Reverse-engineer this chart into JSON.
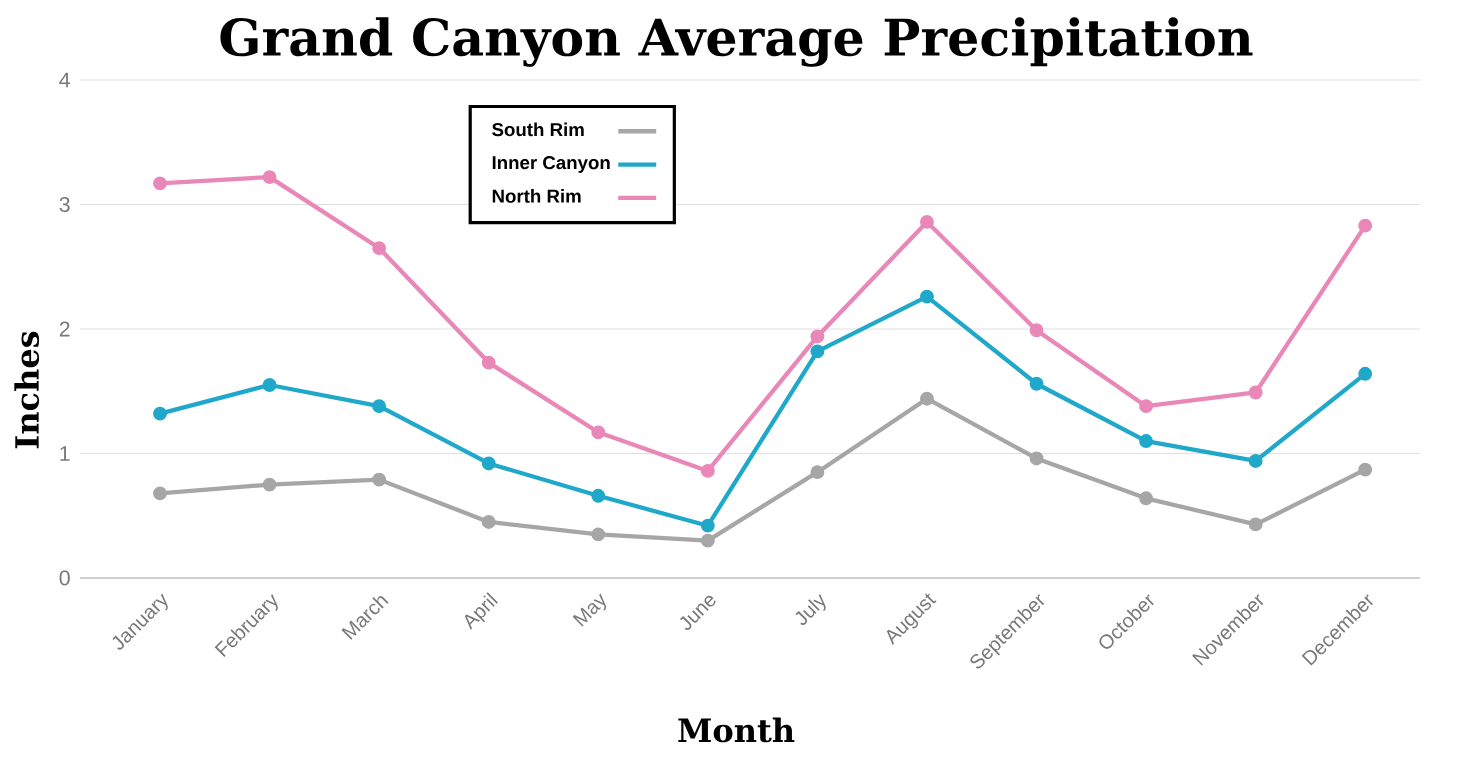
{
  "chart_data": {
    "type": "line",
    "title": "Grand Canyon Average Precipitation",
    "xlabel": "Month",
    "ylabel": "Inches",
    "categories": [
      "January",
      "February",
      "March",
      "April",
      "May",
      "June",
      "July",
      "August",
      "September",
      "October",
      "November",
      "December"
    ],
    "series": [
      {
        "name": "South Rim",
        "color": "#a6a6a6",
        "values": [
          0.68,
          0.75,
          0.79,
          0.45,
          0.35,
          0.3,
          0.85,
          1.44,
          0.96,
          0.64,
          0.43,
          0.87
        ]
      },
      {
        "name": "Inner Canyon",
        "color": "#1fa8c9",
        "values": [
          1.32,
          1.55,
          1.38,
          0.92,
          0.66,
          0.42,
          1.82,
          2.26,
          1.56,
          1.1,
          0.94,
          1.64
        ]
      },
      {
        "name": "North Rim",
        "color": "#e987b8",
        "values": [
          3.17,
          3.22,
          2.65,
          1.73,
          1.17,
          0.86,
          1.94,
          2.86,
          1.99,
          1.38,
          1.49,
          2.83
        ]
      }
    ],
    "ylim": [
      0,
      4
    ],
    "yticks": [
      0,
      1,
      2,
      3,
      4
    ],
    "grid": "y",
    "legend": "top left",
    "marker": "circle",
    "line_style": "solid"
  }
}
